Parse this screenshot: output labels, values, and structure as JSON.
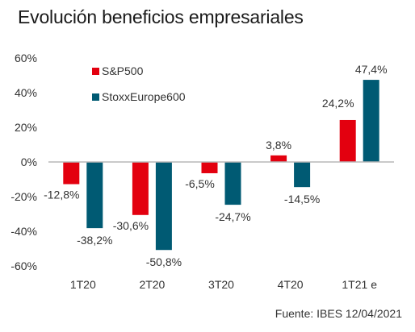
{
  "title": "Evolución beneficios empresariales",
  "source": "Fuente: IBES 12/04/2021",
  "colors": {
    "sp500": "#e3000f",
    "stoxx": "#005a73",
    "axis": "#b8b8b8"
  },
  "chart_data": {
    "type": "bar",
    "title": "Evolución beneficios empresariales",
    "xlabel": "",
    "ylabel": "",
    "ylim": [
      -60,
      60
    ],
    "yticks": [
      "60%",
      "40%",
      "20%",
      "0%",
      "-20%",
      "-40%",
      "-60%"
    ],
    "ytick_values": [
      60,
      40,
      20,
      0,
      -20,
      -40,
      -60
    ],
    "grid": false,
    "legend_position": "top-left",
    "categories": [
      "1T20",
      "2T20",
      "3T20",
      "4T20",
      "1T21 e"
    ],
    "series": [
      {
        "name": "S&P500",
        "color": "#e3000f",
        "values": [
          -12.8,
          -30.6,
          -6.5,
          3.8,
          24.2
        ],
        "labels": [
          "-12,8%",
          "-30,6%",
          "-6,5%",
          "3,8%",
          "24,2%"
        ]
      },
      {
        "name": "StoxxEurope600",
        "color": "#005a73",
        "values": [
          -38.2,
          -50.8,
          -24.7,
          -14.5,
          47.4
        ],
        "labels": [
          "-38,2%",
          "-50,8%",
          "-24,7%",
          "-14,5%",
          "47,4%"
        ]
      }
    ]
  }
}
